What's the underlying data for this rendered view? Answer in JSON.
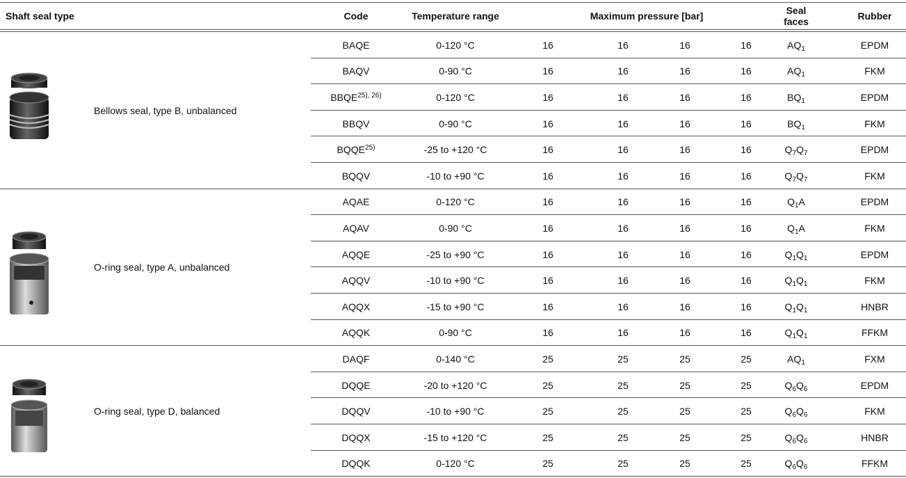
{
  "table": {
    "header": [
      "Shaft seal type",
      "Code",
      "Temperature range",
      "Maximum pressure [bar]",
      "Seal faces",
      "Rubber"
    ],
    "groups": [
      {
        "description": "Bellows seal, type B, unbalanced",
        "rows": [
          {
            "code": "BAQE",
            "temperature": "0-120 °C",
            "pressure": [
              16,
              16,
              16,
              16
            ],
            "seal_faces": [
              {
                "text": "AQ"
              },
              {
                "sub": "1"
              }
            ],
            "rubber": "EPDM"
          },
          {
            "code": "BAQV",
            "temperature": "0-90 °C",
            "pressure": [
              16,
              16,
              16,
              16
            ],
            "seal_faces": [
              {
                "text": "AQ"
              },
              {
                "sub": "1"
              }
            ],
            "rubber": "FKM"
          },
          {
            "code": "BBQE",
            "note": "25), 26)",
            "temperature": "0-120 °C",
            "pressure": [
              16,
              16,
              16,
              16
            ],
            "seal_faces": [
              {
                "text": "BQ"
              },
              {
                "sub": "1"
              }
            ],
            "rubber": "EPDM"
          },
          {
            "code": "BBQV",
            "temperature": "0-90 °C",
            "pressure": [
              16,
              16,
              16,
              16
            ],
            "seal_faces": [
              {
                "text": "BQ"
              },
              {
                "sub": "1"
              }
            ],
            "rubber": "FKM"
          },
          {
            "code": "BQQE",
            "note": "25)",
            "temperature": "-25 to +120 °C",
            "pressure": [
              16,
              16,
              16,
              16
            ],
            "seal_faces": [
              {
                "text": "Q"
              },
              {
                "sub": "7"
              },
              {
                "text": "Q"
              },
              {
                "sub": "7"
              }
            ],
            "rubber": "EPDM"
          },
          {
            "code": "BQQV",
            "temperature": "-10 to +90 °C",
            "pressure": [
              16,
              16,
              16,
              16
            ],
            "seal_faces": [
              {
                "text": "Q"
              },
              {
                "sub": "7"
              },
              {
                "text": "Q"
              },
              {
                "sub": "7"
              }
            ],
            "rubber": "FKM"
          }
        ]
      },
      {
        "description": "O-ring seal, type A, unbalanced",
        "rows": [
          {
            "code": "AQAE",
            "temperature": "0-120 °C",
            "pressure": [
              16,
              16,
              16,
              16
            ],
            "seal_faces": [
              {
                "text": "Q"
              },
              {
                "sub": "1"
              },
              {
                "text": "A"
              }
            ],
            "rubber": "EPDM"
          },
          {
            "code": "AQAV",
            "temperature": "0-90 °C",
            "pressure": [
              16,
              16,
              16,
              16
            ],
            "seal_faces": [
              {
                "text": "Q"
              },
              {
                "sub": "1"
              },
              {
                "text": "A"
              }
            ],
            "rubber": "FKM"
          },
          {
            "code": "AQQE",
            "temperature": "-25 to +90 °C",
            "pressure": [
              16,
              16,
              16,
              16
            ],
            "seal_faces": [
              {
                "text": "Q"
              },
              {
                "sub": "1"
              },
              {
                "text": "Q"
              },
              {
                "sub": "1"
              }
            ],
            "rubber": "EPDM"
          },
          {
            "code": "AQQV",
            "temperature": "-10 to +90 °C",
            "pressure": [
              16,
              16,
              16,
              16
            ],
            "seal_faces": [
              {
                "text": "Q"
              },
              {
                "sub": "1"
              },
              {
                "text": "Q"
              },
              {
                "sub": "1"
              }
            ],
            "rubber": "FKM"
          },
          {
            "code": "AQQX",
            "temperature": "-15 to +90 °C",
            "pressure": [
              16,
              16,
              16,
              16
            ],
            "seal_faces": [
              {
                "text": "Q"
              },
              {
                "sub": "1"
              },
              {
                "text": "Q"
              },
              {
                "sub": "1"
              }
            ],
            "rubber": "HNBR"
          },
          {
            "code": "AQQK",
            "temperature": "0-90 °C",
            "pressure": [
              16,
              16,
              16,
              16
            ],
            "seal_faces": [
              {
                "text": "Q"
              },
              {
                "sub": "1"
              },
              {
                "text": "Q"
              },
              {
                "sub": "1"
              }
            ],
            "rubber": "FFKM"
          }
        ]
      },
      {
        "description": "O-ring seal, type D, balanced",
        "rows": [
          {
            "code": "DAQF",
            "temperature": "0-140 °C",
            "pressure": [
              25,
              25,
              25,
              25
            ],
            "seal_faces": [
              {
                "text": "AQ"
              },
              {
                "sub": "1"
              }
            ],
            "rubber": "FXM"
          },
          {
            "code": "DQQE",
            "temperature": "-20 to +120 °C",
            "pressure": [
              25,
              25,
              25,
              25
            ],
            "seal_faces": [
              {
                "text": "Q"
              },
              {
                "sub": "6"
              },
              {
                "text": "Q"
              },
              {
                "sub": "6"
              }
            ],
            "rubber": "EPDM"
          },
          {
            "code": "DQQV",
            "temperature": "-10 to +90 °C",
            "pressure": [
              25,
              25,
              25,
              25
            ],
            "seal_faces": [
              {
                "text": "Q"
              },
              {
                "sub": "6"
              },
              {
                "text": "Q"
              },
              {
                "sub": "6"
              }
            ],
            "rubber": "FKM"
          },
          {
            "code": "DQQX",
            "temperature": "-15 to +120 °C",
            "pressure": [
              25,
              25,
              25,
              25
            ],
            "seal_faces": [
              {
                "text": "Q"
              },
              {
                "sub": "6"
              },
              {
                "text": "Q"
              },
              {
                "sub": "6"
              }
            ],
            "rubber": "HNBR"
          },
          {
            "code": "DQQK",
            "temperature": "0-120 °C",
            "pressure": [
              25,
              25,
              25,
              25
            ],
            "seal_faces": [
              {
                "text": "Q"
              },
              {
                "sub": "6"
              },
              {
                "text": "Q"
              },
              {
                "sub": "6"
              }
            ],
            "rubber": "FFKM"
          }
        ]
      }
    ]
  }
}
